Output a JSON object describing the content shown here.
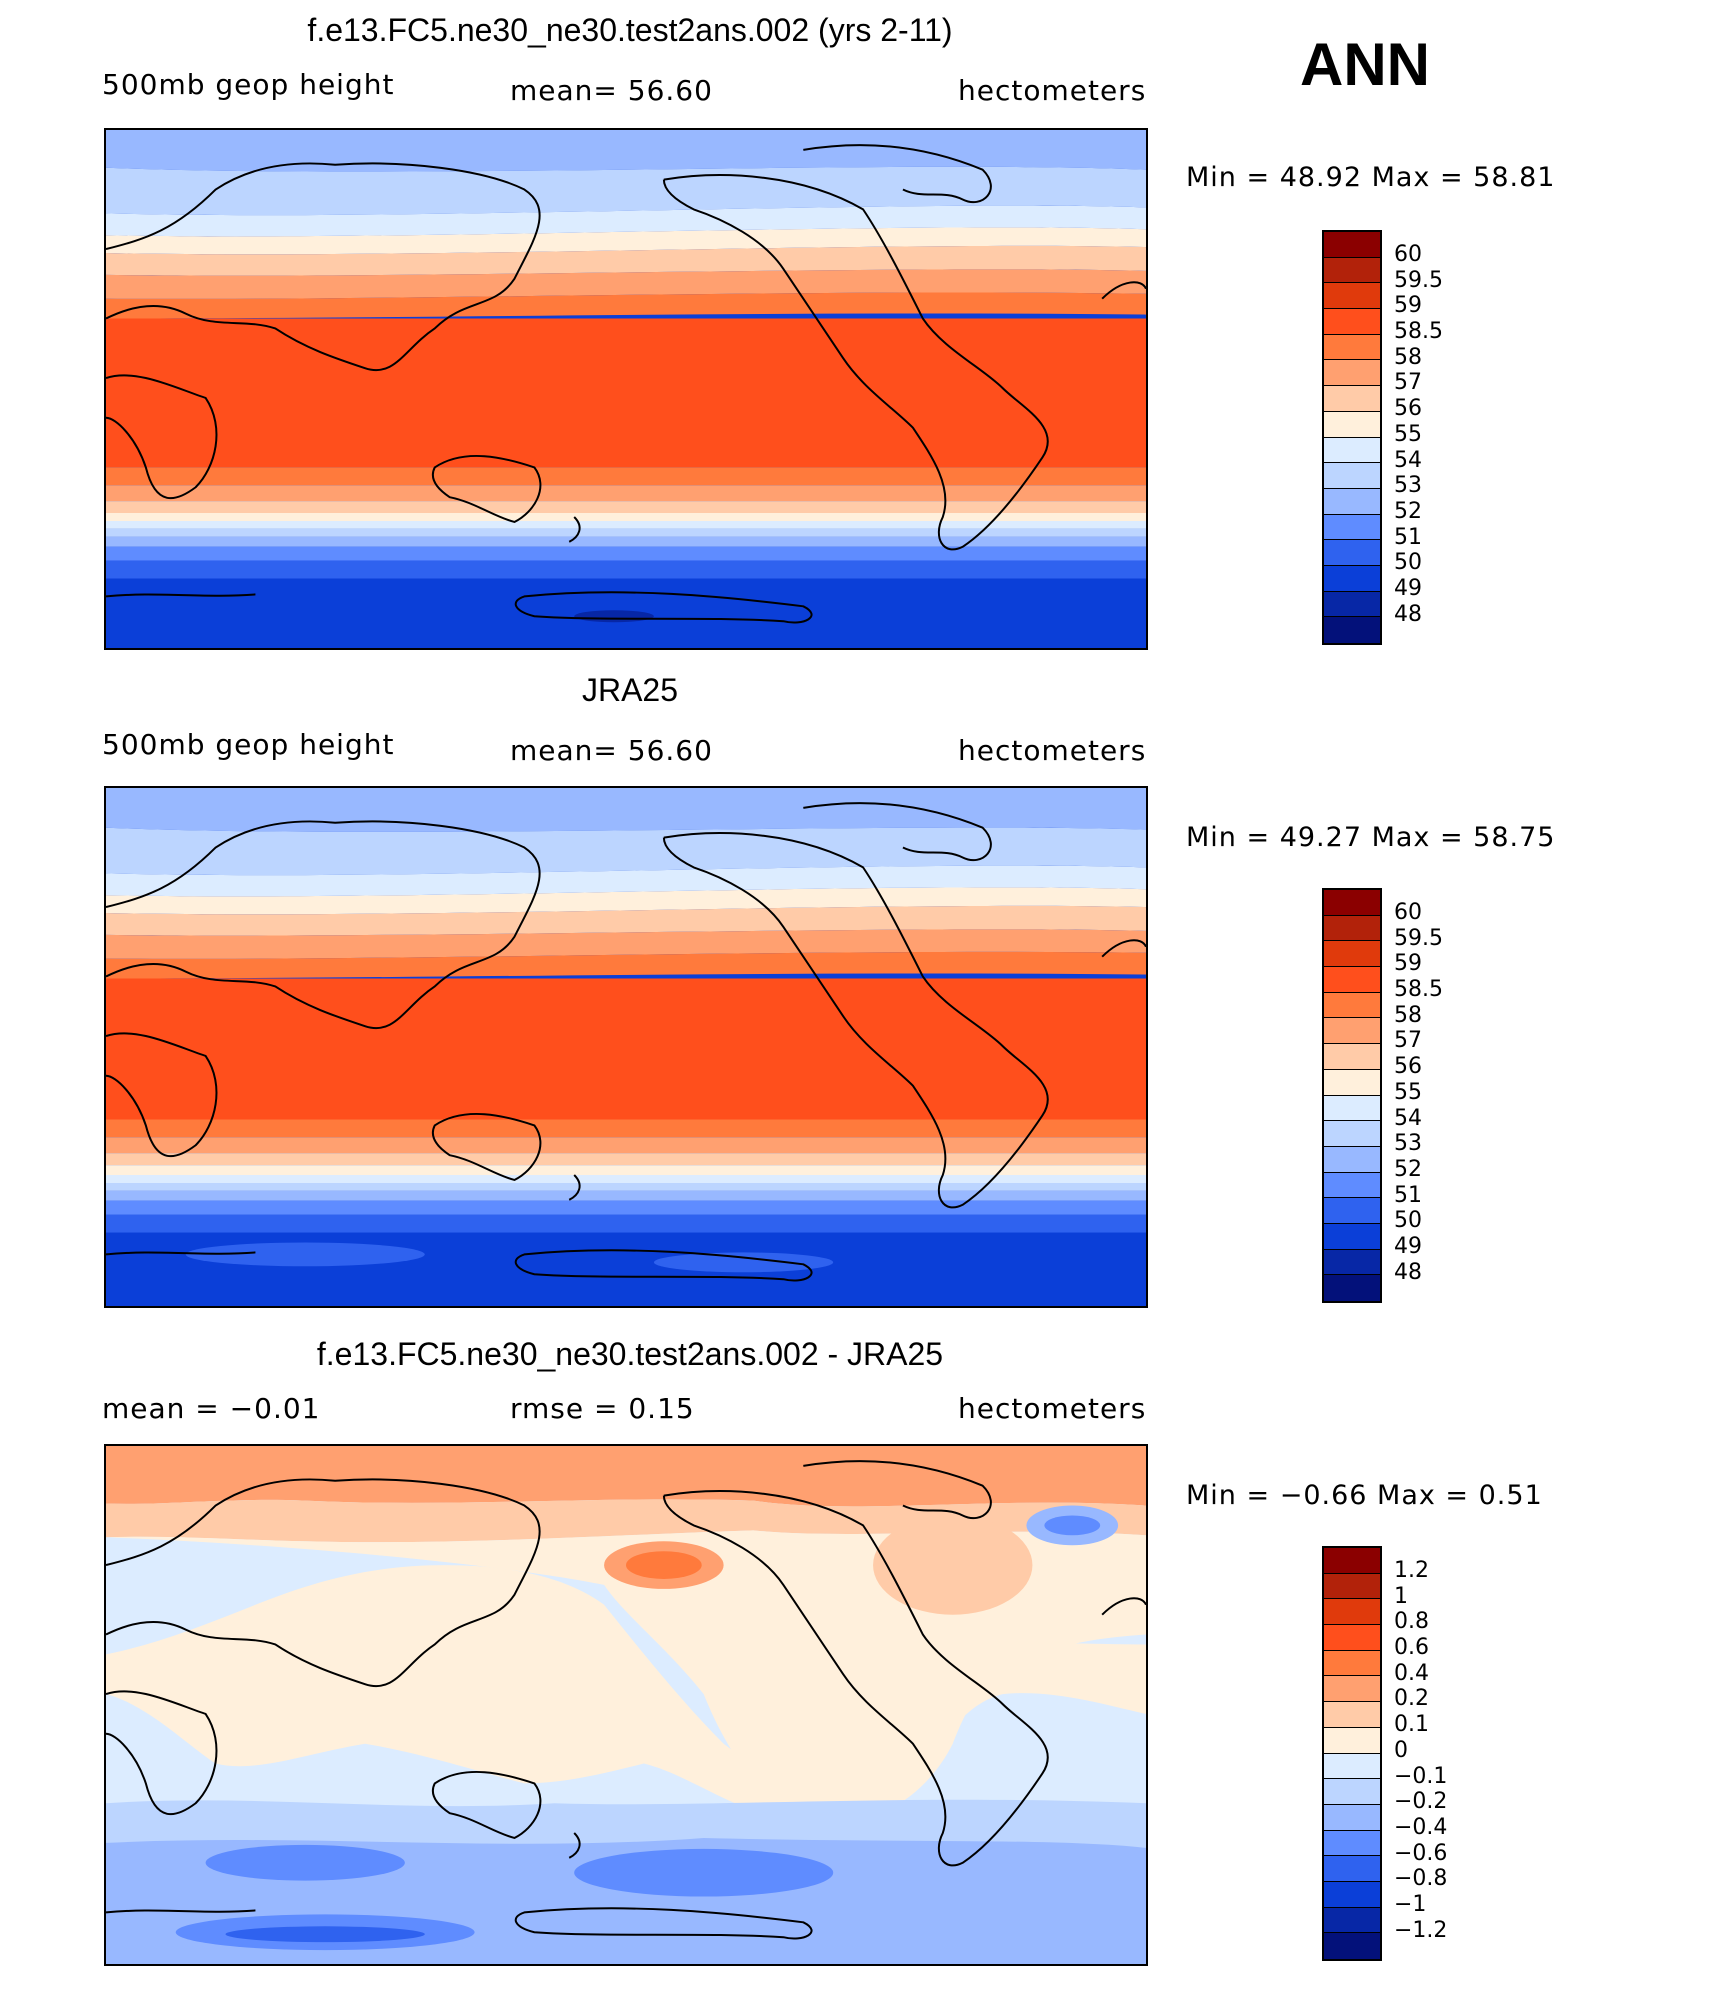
{
  "season": "ANN",
  "panels": [
    {
      "title": "f.e13.FC5.ne30_ne30.test2ans.002 (yrs 2-11)",
      "left_label": "500mb  geop  height",
      "center_label": "mean=   56.60",
      "right_label": "hectometers",
      "minmax": "Min  =    48.92  Max  =    58.81",
      "colorbar_labels": [
        "60",
        "59.5",
        "59",
        "58.5",
        "58",
        "57",
        "56",
        "55",
        "54",
        "53",
        "52",
        "51",
        "50",
        "49",
        "48"
      ]
    },
    {
      "title": "JRA25",
      "left_label": "500mb  geop  height",
      "center_label": "mean=   56.60",
      "right_label": "hectometers",
      "minmax": "Min  =    49.27  Max  =    58.75",
      "colorbar_labels": [
        "60",
        "59.5",
        "59",
        "58.5",
        "58",
        "57",
        "56",
        "55",
        "54",
        "53",
        "52",
        "51",
        "50",
        "49",
        "48"
      ]
    },
    {
      "title": "f.e13.FC5.ne30_ne30.test2ans.002 - JRA25",
      "left_label": "mean  =    −0.01",
      "center_label": "rmse  =     0.15",
      "right_label": "hectometers",
      "minmax": "Min  =   −0.66  Max  =     0.51",
      "colorbar_labels": [
        "1.2",
        "1",
        "0.8",
        "0.6",
        "0.4",
        "0.2",
        "0.1",
        "0",
        "−0.1",
        "−0.2",
        "−0.4",
        "−0.6",
        "−0.8",
        "−1",
        "−1.2"
      ]
    }
  ],
  "colors": {
    "palette": [
      "#8b0000",
      "#b2220a",
      "#e03a0c",
      "#ff4f1c",
      "#ff7a3c",
      "#ffa070",
      "#ffcba8",
      "#fff0dc",
      "#dcecff",
      "#bcd5ff",
      "#98b8ff",
      "#5f8cff",
      "#2f62ef",
      "#0b3fd8",
      "#0727a6",
      "#03117a"
    ]
  }
}
